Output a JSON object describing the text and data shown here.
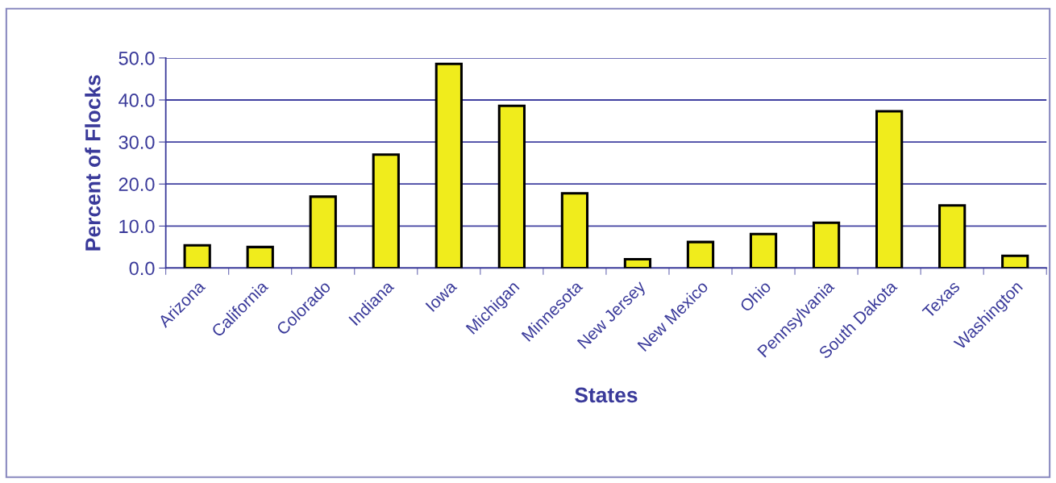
{
  "chart_data": {
    "type": "bar",
    "xlabel": "States",
    "ylabel": "Percent of Flocks",
    "categories": [
      "Arizona",
      "California",
      "Colorado",
      "Indiana",
      "Iowa",
      "Michigan",
      "Minnesota",
      "New Jersey",
      "New Mexico",
      "Ohio",
      "Pennsylvania",
      "South Dakota",
      "Texas",
      "Washington"
    ],
    "values": [
      5.4,
      5.0,
      17.0,
      27.0,
      48.6,
      38.6,
      17.8,
      2.1,
      6.2,
      8.1,
      10.8,
      37.3,
      14.9,
      2.9
    ],
    "color": "#f0ec1c",
    "ylim": [
      0,
      50
    ],
    "yticks": [
      {
        "value": 0,
        "label": "0.0"
      },
      {
        "value": 10,
        "label": "10.0"
      },
      {
        "value": 20,
        "label": "20.0"
      },
      {
        "value": 30,
        "label": "30.0"
      },
      {
        "value": 40,
        "label": "40.0"
      },
      {
        "value": 50,
        "label": "50.0"
      }
    ],
    "grid": "y",
    "legend": false
  }
}
